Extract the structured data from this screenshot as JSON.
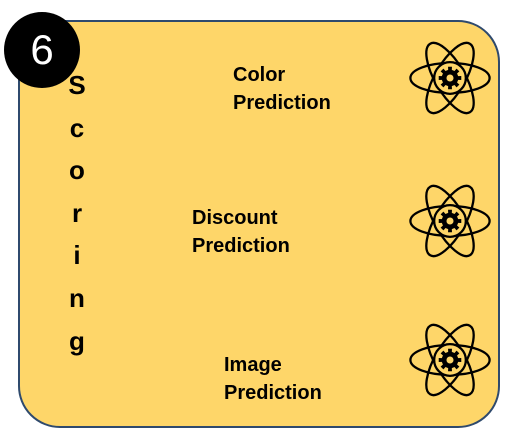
{
  "badge": {
    "number": "6"
  },
  "title": {
    "letters": [
      "S",
      "c",
      "o",
      "r",
      "i",
      "n",
      "g"
    ]
  },
  "models": [
    {
      "line1": "Color",
      "line2": "Prediction",
      "icon": "atom-gear-icon"
    },
    {
      "line1": "Discount",
      "line2": "Prediction",
      "icon": "atom-gear-icon"
    },
    {
      "line1": "Image",
      "line2": "Prediction",
      "icon": "atom-gear-icon"
    }
  ],
  "colors": {
    "panel_fill": "#fed669",
    "panel_border": "#2f4a6d",
    "badge_fill": "#000000",
    "text": "#000000"
  }
}
